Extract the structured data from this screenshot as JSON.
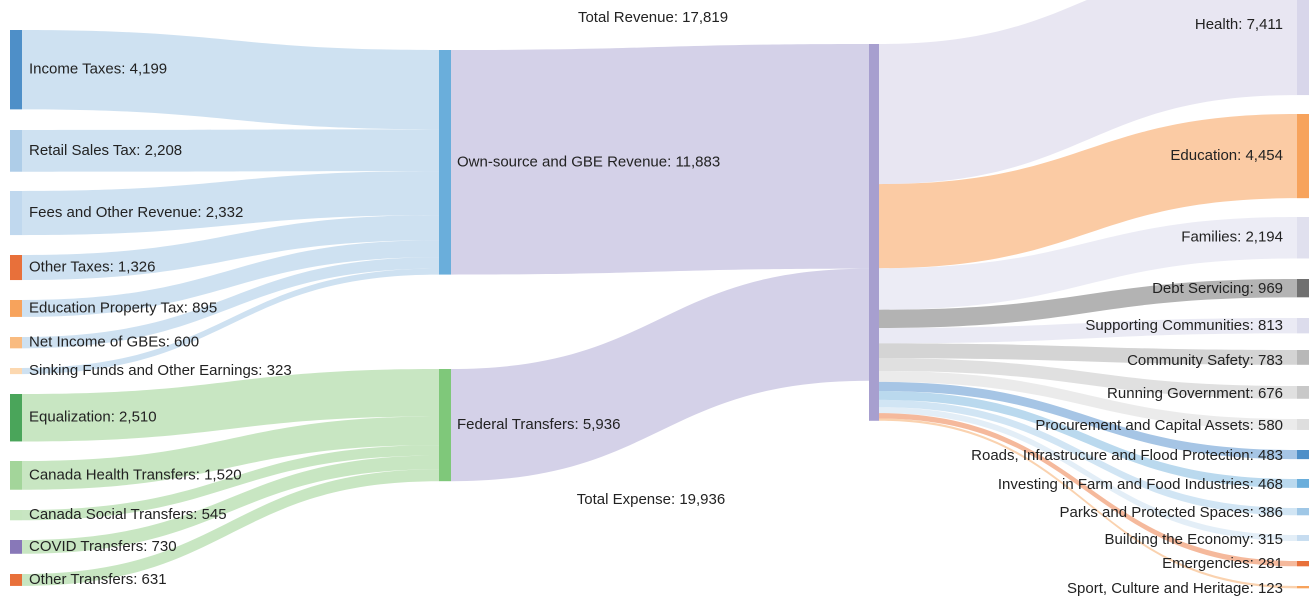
{
  "chart_data": {
    "type": "sankey",
    "nodes": [
      {
        "label": "Income Taxes: 4,199",
        "value": 4199,
        "color": "#4e8fc8"
      },
      {
        "label": "Retail Sales Tax: 2,208",
        "value": 2208,
        "color": "#aecde8"
      },
      {
        "label": "Fees and Other Revenue: 2,332",
        "value": 2332,
        "color": "#c0d8ee"
      },
      {
        "label": "Other Taxes: 1,326",
        "value": 1326,
        "color": "#e8703a"
      },
      {
        "label": "Education Property Tax: 895",
        "value": 895,
        "color": "#f7a35c"
      },
      {
        "label": "Net Income of GBEs: 600",
        "value": 600,
        "color": "#f9bb80"
      },
      {
        "label": "Sinking Funds and Other Earnings: 323",
        "value": 323,
        "color": "#fcd8b0"
      },
      {
        "label": "Equalization: 2,510",
        "value": 2510,
        "color": "#4aa55a"
      },
      {
        "label": "Canada Health Transfers: 1,520",
        "value": 1520,
        "color": "#a3d59a"
      },
      {
        "label": "Canada Social Transfers: 545",
        "value": 545,
        "color": "#c6e6bf"
      },
      {
        "label": "COVID Transfers: 730",
        "value": 730,
        "color": "#8878b8"
      },
      {
        "label": "Other Transfers: 631",
        "value": 631,
        "color": "#e8703a"
      },
      {
        "label": "Own-source and GBE Revenue: 11,883",
        "value": 11883,
        "color": "#6aaedb"
      },
      {
        "label": "Federal Transfers: 5,936",
        "value": 5936,
        "color": "#7fc87a"
      },
      {
        "label": "Total Expense: 19,936",
        "value": 19936,
        "inflow_label": "Total Revenue: 17,819",
        "inflow": 17819,
        "color": "#a79fcf"
      },
      {
        "label": "Health: 7,411",
        "value": 7411,
        "color": "#d8d6ea"
      },
      {
        "label": "Education: 4,454",
        "value": 4454,
        "color": "#f7a35c"
      },
      {
        "label": "Families: 2,194",
        "value": 2194,
        "color": "#e0e0ee"
      },
      {
        "label": "Debt Servicing: 969",
        "value": 969,
        "color": "#707070"
      },
      {
        "label": "Supporting Communities: 813",
        "value": 813,
        "color": "#dcdcec"
      },
      {
        "label": "Community Safety: 783",
        "value": 783,
        "color": "#b8b8b8"
      },
      {
        "label": "Running Government: 676",
        "value": 676,
        "color": "#c8c8c8"
      },
      {
        "label": "Procurement and Capital Assets: 580",
        "value": 580,
        "color": "#dedede"
      },
      {
        "label": "Roads, Infrastrucure and Flood Protection: 483",
        "value": 483,
        "color": "#4e8fc8"
      },
      {
        "label": "Investing in Farm and Food Industries: 468",
        "value": 468,
        "color": "#6aaedb"
      },
      {
        "label": "Parks and Protected Spaces: 386",
        "value": 386,
        "color": "#9fc7e6"
      },
      {
        "label": "Building the Economy: 315",
        "value": 315,
        "color": "#c6dcf0"
      },
      {
        "label": "Emergencies: 281",
        "value": 281,
        "color": "#e8703a"
      },
      {
        "label": "Sport, Culture and Heritage: 123",
        "value": 123,
        "color": "#f7a35c"
      }
    ],
    "links": [
      {
        "source": 0,
        "target": 12,
        "value": 4199,
        "color": "#aecde8"
      },
      {
        "source": 1,
        "target": 12,
        "value": 2208,
        "color": "#aecde8"
      },
      {
        "source": 2,
        "target": 12,
        "value": 2332,
        "color": "#aecde8"
      },
      {
        "source": 3,
        "target": 12,
        "value": 1326,
        "color": "#aecde8"
      },
      {
        "source": 4,
        "target": 12,
        "value": 895,
        "color": "#aecde8"
      },
      {
        "source": 5,
        "target": 12,
        "value": 600,
        "color": "#aecde8"
      },
      {
        "source": 6,
        "target": 12,
        "value": 323,
        "color": "#aecde8"
      },
      {
        "source": 7,
        "target": 13,
        "value": 2510,
        "color": "#a3d59a"
      },
      {
        "source": 8,
        "target": 13,
        "value": 1520,
        "color": "#a3d59a"
      },
      {
        "source": 9,
        "target": 13,
        "value": 545,
        "color": "#a3d59a"
      },
      {
        "source": 10,
        "target": 13,
        "value": 730,
        "color": "#a3d59a"
      },
      {
        "source": 11,
        "target": 13,
        "value": 631,
        "color": "#a3d59a"
      },
      {
        "source": 12,
        "target": 14,
        "value": 11883,
        "color": "#b8b2d8"
      },
      {
        "source": 13,
        "target": 14,
        "value": 5936,
        "color": "#b8b2d8"
      },
      {
        "source": 14,
        "target": 15,
        "value": 7411,
        "color": "#d8d6ea"
      },
      {
        "source": 14,
        "target": 16,
        "value": 4454,
        "color": "#f9a868"
      },
      {
        "source": 14,
        "target": 17,
        "value": 2194,
        "color": "#e0e0ee"
      },
      {
        "source": 14,
        "target": 18,
        "value": 969,
        "color": "#808080"
      },
      {
        "source": 14,
        "target": 19,
        "value": 813,
        "color": "#dcdcec"
      },
      {
        "source": 14,
        "target": 20,
        "value": 783,
        "color": "#b8b8b8"
      },
      {
        "source": 14,
        "target": 21,
        "value": 676,
        "color": "#cccccc"
      },
      {
        "source": 14,
        "target": 22,
        "value": 580,
        "color": "#dedede"
      },
      {
        "source": 14,
        "target": 23,
        "value": 483,
        "color": "#6b9fd4"
      },
      {
        "source": 14,
        "target": 24,
        "value": 468,
        "color": "#8cc0e2"
      },
      {
        "source": 14,
        "target": 25,
        "value": 386,
        "color": "#b3d3ec"
      },
      {
        "source": 14,
        "target": 26,
        "value": 315,
        "color": "#d0e2f2"
      },
      {
        "source": 14,
        "target": 27,
        "value": 281,
        "color": "#ee8a5a"
      },
      {
        "source": 14,
        "target": 28,
        "value": 123,
        "color": "#f7b47a"
      }
    ]
  }
}
